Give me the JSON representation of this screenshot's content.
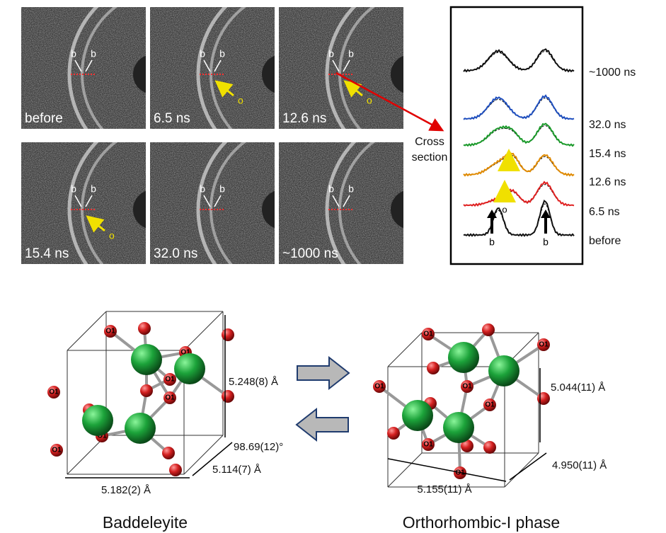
{
  "panels": [
    {
      "label": "before",
      "b_labels": [
        "b",
        "b"
      ]
    },
    {
      "label": "6.5 ns",
      "b_labels": [
        "b",
        "b"
      ],
      "marker": "o"
    },
    {
      "label": "12.6 ns",
      "b_labels": [
        "b",
        "b"
      ],
      "marker": "o"
    },
    {
      "label": "15.4 ns",
      "b_labels": [
        "b",
        "b"
      ],
      "marker": "o"
    },
    {
      "label": "32.0 ns",
      "b_labels": [
        "b",
        "b"
      ]
    },
    {
      "label": "~1000 ns",
      "b_labels": [
        "b",
        "b"
      ]
    }
  ],
  "cross_section": {
    "label": "Cross section",
    "traces": [
      {
        "label": "~1000 ns",
        "color": "#111111"
      },
      {
        "label": "32.0 ns",
        "color": "#1f4fbf"
      },
      {
        "label": "15.4 ns",
        "color": "#1a9a2a"
      },
      {
        "label": "12.6 ns",
        "color": "#e08a00"
      },
      {
        "label": "6.5 ns",
        "color": "#e02020"
      },
      {
        "label": "before",
        "color": "#111111"
      }
    ],
    "o_label": "o",
    "b_labels": [
      "b",
      "b"
    ]
  },
  "structures": [
    {
      "name": "Baddeleyite",
      "atom_label": "O1",
      "dimensions": [
        "5.248(8) Å",
        "5.114(7) Å",
        "5.182(2) Å"
      ],
      "angle": "98.69(12)°"
    },
    {
      "name": "Orthorhombic-I phase",
      "atom_label": "O1",
      "dimensions": [
        "5.044(11) Å",
        "4.950(11) Å",
        "5.155(11) Å"
      ]
    }
  ]
}
